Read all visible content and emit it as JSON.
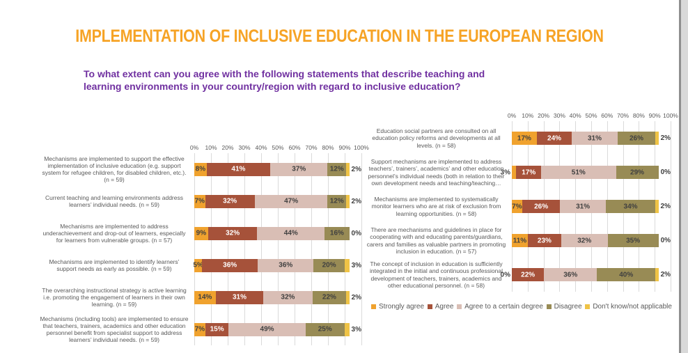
{
  "slide": {
    "title": "IMPLEMENTATION OF INCLUSIVE EDUCATION IN THE EUROPEAN REGION",
    "question": "To what extent can you agree with the following statements that describe teaching and\nlearning environments in your country/region with regard to inclusive education?"
  },
  "colors": {
    "title": "#F6A325",
    "question": "#7030A0",
    "series": [
      "#F0A22E",
      "#A6523A",
      "#D9BEB5",
      "#988B55",
      "#EFC346"
    ],
    "grid": "#DADADA",
    "category_text": "#595959",
    "value_text": "#404040"
  },
  "legend": [
    "Strongly agree",
    "Agree",
    "Agree  to a certain degree",
    "Disagree",
    "Don't know/not applicable"
  ],
  "chart_data": [
    {
      "type": "bar",
      "stacked": true,
      "orientation": "horizontal",
      "grid": true,
      "xlim": [
        0,
        100
      ],
      "x_ticks": [
        "0%",
        "10%",
        "20%",
        "30%",
        "40%",
        "50%",
        "60%",
        "70%",
        "80%",
        "90%",
        "100%"
      ],
      "categories": [
        "Mechanisms are implemented to support the effective implementation of inclusive education (e.g. support system for refugee children, for disabled children, etc.). (n = 59)",
        "Current teaching and learning environments address learners’ individual needs. (n = 59)",
        "Mechanisms are implemented to address underachievement and drop-out of learners, especially for learners from vulnerable groups. (n = 57)",
        "Mechanisms are implemented to identify learners’ support needs as early as possible. (n = 59)",
        "The overarching instructional strategy is active learning i.e. promoting the engagement of learners in their own learning. (n = 59)",
        "Mechanisms (including tools) are implemented to ensure that teachers, trainers, academics and other education personnel benefit from specialist support to address learners’ individual needs. (n = 59)"
      ],
      "series": [
        {
          "name": "Strongly agree",
          "values": [
            8,
            7,
            9,
            5,
            14,
            7
          ]
        },
        {
          "name": "Agree",
          "values": [
            41,
            32,
            32,
            36,
            31,
            15
          ]
        },
        {
          "name": "Agree to a certain degree",
          "values": [
            37,
            47,
            44,
            36,
            32,
            49
          ]
        },
        {
          "name": "Disagree",
          "values": [
            12,
            12,
            16,
            20,
            22,
            25
          ]
        },
        {
          "name": "Don't know/not applicable",
          "values": [
            2,
            2,
            0,
            3,
            2,
            3
          ]
        }
      ]
    },
    {
      "type": "bar",
      "stacked": true,
      "orientation": "horizontal",
      "grid": true,
      "xlim": [
        0,
        100
      ],
      "x_ticks": [
        "0%",
        "10%",
        "20%",
        "30%",
        "40%",
        "50%",
        "60%",
        "70%",
        "80%",
        "90%",
        "100%"
      ],
      "categories": [
        "Education social partners are consulted on all education policy reforms and developments at all levels. (n = 58)",
        "Support mechanisms are implemented to address teachers’, trainers’, academics’ and other education personnel’s individual needs (both in relation to their own development needs and teaching/teaching…",
        "Mechanisms are implemented to systematically monitor learners who are at risk of exclusion from learning opportunities. (n = 58)",
        "There are mechanisms and guidelines in place for cooperating with and educating parents/guardians, carers and families as valuable partners in promoting inclusion in education. (n = 57)",
        "The concept of inclusion in education is sufficiently integrated in the initial and continuous professional development of teachers, trainers, academics and other educational personnel.  (n = 58)"
      ],
      "series": [
        {
          "name": "Strongly agree",
          "values": [
            17,
            3,
            7,
            11,
            0
          ]
        },
        {
          "name": "Agree",
          "values": [
            24,
            17,
            26,
            23,
            22
          ]
        },
        {
          "name": "Agree to a certain degree",
          "values": [
            31,
            51,
            31,
            32,
            36
          ]
        },
        {
          "name": "Disagree",
          "values": [
            26,
            29,
            34,
            35,
            40
          ]
        },
        {
          "name": "Don't know/not applicable",
          "values": [
            2,
            0,
            2,
            0,
            2
          ]
        }
      ]
    }
  ]
}
